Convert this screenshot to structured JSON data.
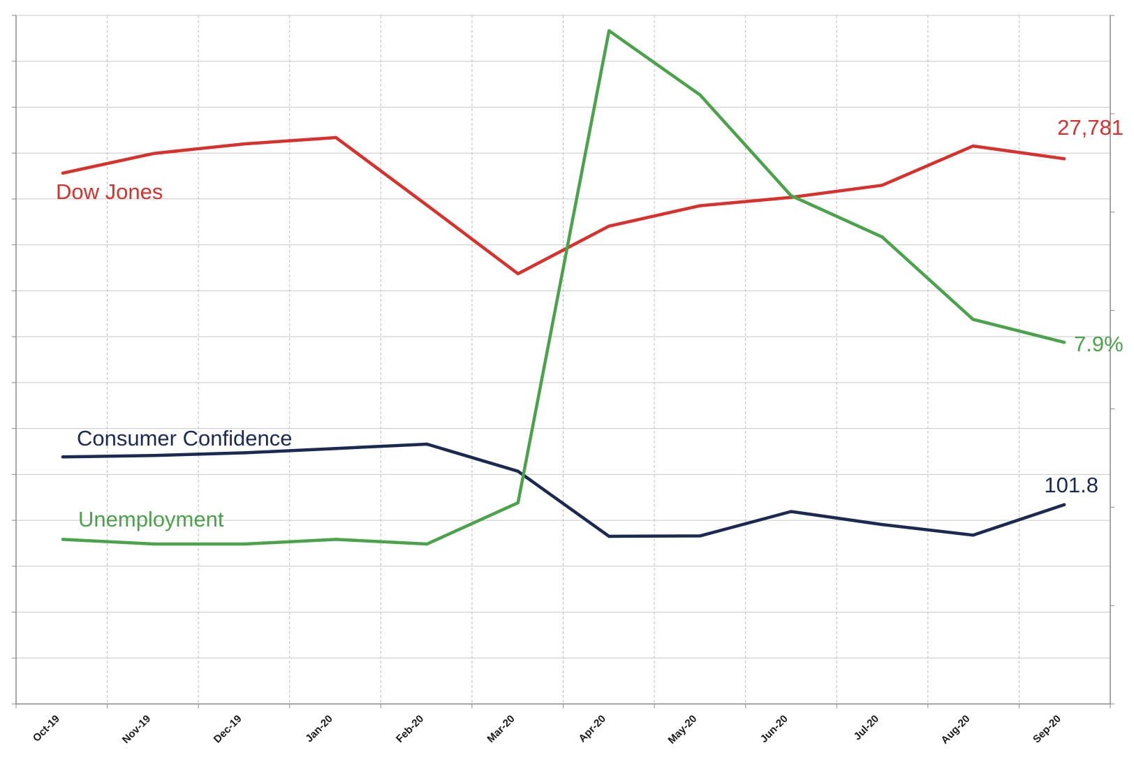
{
  "chart_data": {
    "type": "line",
    "categories": [
      "Oct-19",
      "Nov-19",
      "Dec-19",
      "Jan-20",
      "Feb-20",
      "Mar-20",
      "Apr-20",
      "May-20",
      "Jun-20",
      "Jul-20",
      "Aug-20",
      "Sep-20"
    ],
    "grid": true,
    "series": [
      {
        "name": "Dow Jones",
        "color": "#d9302c",
        "values": [
          27046,
          28051,
          28538,
          28859,
          25409,
          21917,
          24346,
          25383,
          25813,
          26428,
          28430,
          27781
        ],
        "end_label": "27,781"
      },
      {
        "name": "Consumer Confidence",
        "color": "#1b2a52",
        "values": [
          126.1,
          126.8,
          128.2,
          130.4,
          132.6,
          118.8,
          85.7,
          85.9,
          98.3,
          91.7,
          86.3,
          101.8
        ],
        "end_label": "101.8"
      },
      {
        "name": "Unemployment",
        "color": "#4aa34a",
        "values": [
          3.6,
          3.5,
          3.5,
          3.6,
          3.5,
          4.4,
          14.7,
          13.3,
          11.1,
          10.2,
          8.4,
          7.9
        ],
        "end_label": "7.9%"
      }
    ]
  }
}
